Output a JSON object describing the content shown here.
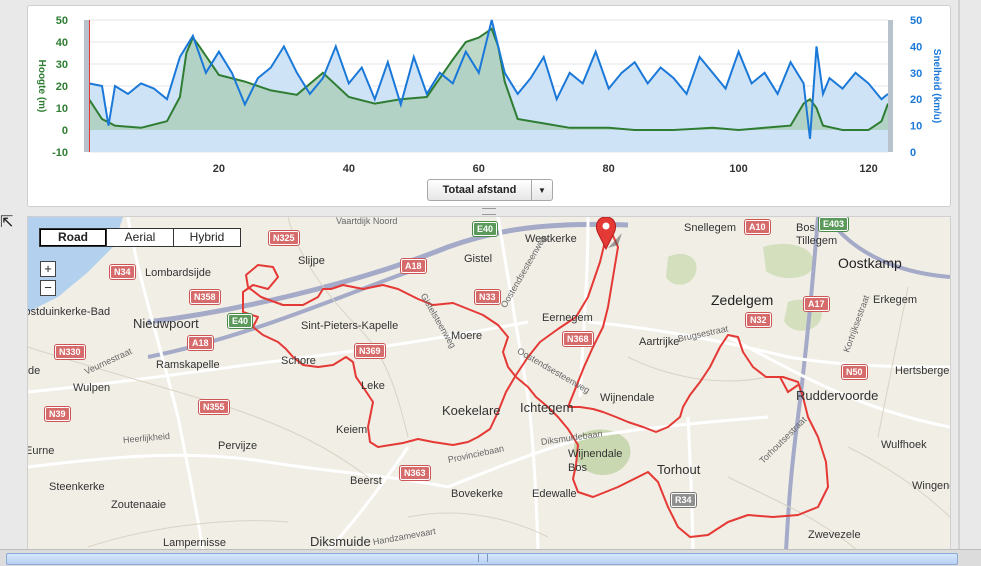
{
  "chart": {
    "left_axis_label": "Hoogte (m)",
    "right_axis_label": "Snelheid (km/u)",
    "left_ticks": [
      "50",
      "40",
      "30",
      "20",
      "10",
      "0",
      "-10"
    ],
    "right_ticks": [
      "50",
      "40",
      "30",
      "20",
      "10",
      "0"
    ],
    "x_ticks": [
      "20",
      "40",
      "60",
      "80",
      "100",
      "120"
    ],
    "dropdown_label": "Totaal afstand",
    "colors": {
      "elevation": "#2e7d32",
      "speed": "#1a78d8"
    }
  },
  "chart_data": {
    "type": "area",
    "xlabel": "",
    "ylabel": "Hoogte (m)",
    "y2label": "Snelheid (km/u)",
    "xlim": [
      0,
      123
    ],
    "ylim": [
      -10,
      50
    ],
    "y2lim": [
      0,
      50
    ],
    "series": [
      {
        "name": "Hoogte (m)",
        "x": [
          0,
          2,
          4,
          8,
          12,
          14,
          15,
          16,
          17,
          20,
          24,
          28,
          32,
          36,
          40,
          44,
          48,
          52,
          56,
          58,
          60,
          61,
          62,
          63,
          64,
          66,
          70,
          74,
          80,
          84,
          90,
          96,
          100,
          104,
          108,
          110,
          111,
          112,
          113,
          116,
          120,
          122,
          123
        ],
        "values": [
          14,
          5,
          2,
          1,
          4,
          15,
          35,
          42,
          38,
          25,
          22,
          18,
          16,
          26,
          15,
          12,
          14,
          15,
          32,
          40,
          42,
          44,
          46,
          38,
          22,
          5,
          3,
          1,
          1,
          0,
          0,
          1,
          0,
          1,
          2,
          12,
          14,
          10,
          2,
          0,
          0,
          4,
          12
        ]
      },
      {
        "name": "Snelheid (km/u)",
        "x": [
          0,
          2,
          3,
          4,
          6,
          8,
          10,
          12,
          14,
          16,
          18,
          20,
          22,
          24,
          26,
          28,
          30,
          32,
          34,
          36,
          38,
          40,
          42,
          44,
          46,
          48,
          50,
          52,
          54,
          56,
          58,
          60,
          62,
          64,
          66,
          68,
          70,
          72,
          74,
          76,
          78,
          80,
          82,
          84,
          86,
          88,
          90,
          92,
          94,
          96,
          98,
          100,
          102,
          104,
          106,
          108,
          110,
          111,
          112,
          113,
          114,
          116,
          118,
          120,
          122,
          123
        ],
        "values": [
          26,
          25,
          10,
          25,
          22,
          26,
          24,
          20,
          36,
          44,
          30,
          38,
          30,
          18,
          28,
          32,
          40,
          30,
          22,
          28,
          40,
          26,
          32,
          20,
          34,
          18,
          36,
          22,
          30,
          26,
          38,
          30,
          50,
          30,
          22,
          28,
          36,
          20,
          30,
          26,
          38,
          24,
          30,
          34,
          26,
          32,
          28,
          22,
          36,
          30,
          24,
          38,
          26,
          30,
          22,
          34,
          26,
          5,
          40,
          22,
          28,
          24,
          30,
          26,
          20,
          22
        ]
      }
    ]
  },
  "map": {
    "map_types": [
      "Road",
      "Aerial",
      "Hybrid"
    ],
    "zoom_in": "+",
    "zoom_out": "−",
    "places_large": [
      "Oostkamp",
      "Zedelgem"
    ],
    "places": [
      "Vaartdijk Noord",
      "Westkerke",
      "Gistel",
      "Snellegem",
      "Bos Van Tillegem",
      "Slijpe",
      "Lombardsijde",
      "Erkegem",
      "Oostduinkerke-Bad",
      "Nieuwpoort",
      "Sint-Pieters-Kapelle",
      "Eernegem",
      "Moere",
      "Aartrijke",
      "Schore",
      "Ramskapelle",
      "Hertsberge",
      "Wulpen",
      "Leke",
      "Wijnendale",
      "Koekelare",
      "Ichtegem",
      "Ruddervoorde",
      "Keiem",
      "Pervijze",
      "Wijnendale Bos",
      "Torhout",
      "Wulfhoek",
      "de",
      "Eurne",
      "Beerst",
      "Steenkerke",
      "Bovekerke",
      "Edewalle",
      "Wingene",
      "Zoutenaaie",
      "Lampernisse",
      "Diksmuide",
      "Zwevezele"
    ],
    "roads": [
      "N325",
      "E40",
      "A10",
      "E403",
      "N34",
      "A18",
      "N358",
      "N33",
      "A17",
      "E40",
      "N32",
      "A18",
      "N330",
      "N369",
      "N368",
      "N50",
      "N39",
      "N355",
      "N363",
      "R34"
    ],
    "streets": [
      "Gistelsteenweg",
      "Oostendsesteenweg",
      "Brugsestraat",
      "Kortrijksestraat",
      "Veurnestraat",
      "Oostendsesteenweg",
      "Diksmuidebaan",
      "Provinciebaan",
      "Torhoutsestraat",
      "Handzamevaart",
      "Heerlijkheid"
    ]
  }
}
